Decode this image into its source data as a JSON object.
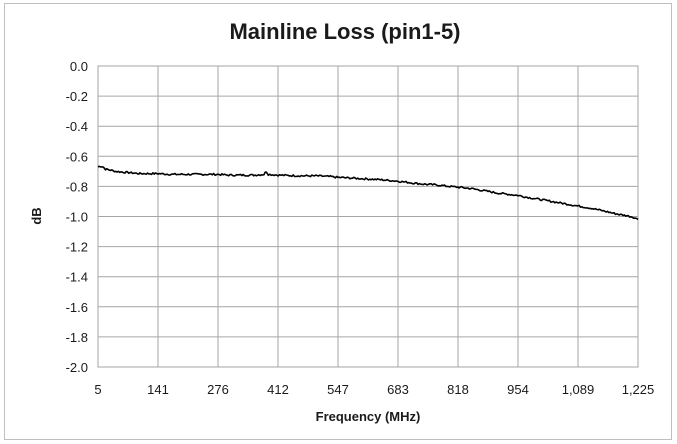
{
  "chart_data": {
    "type": "line",
    "title": "Mainline Loss (pin1-5)",
    "xlabel": "Frequency (MHz)",
    "ylabel": "dB",
    "xlim": [
      5,
      1225
    ],
    "ylim": [
      -2.0,
      0.0
    ],
    "x_ticks": [
      "5",
      "141",
      "276",
      "412",
      "547",
      "683",
      "818",
      "954",
      "1,089",
      "1,225"
    ],
    "y_ticks": [
      "0.0",
      "-0.2",
      "-0.4",
      "-0.6",
      "-0.8",
      "-1.0",
      "-1.2",
      "-1.4",
      "-1.6",
      "-1.8",
      "-2.0"
    ],
    "grid": true,
    "legend": "none",
    "line_color": "#000000",
    "grid_color": "#a6a6a6",
    "series": [
      {
        "x": [
          5,
          10,
          16,
          22,
          30,
          45,
          60,
          80,
          100,
          120,
          141,
          170,
          200,
          230,
          260,
          276,
          300,
          330,
          360,
          380,
          385,
          390,
          412,
          440,
          470,
          500,
          530,
          547,
          580,
          610,
          640,
          683,
          710,
          740,
          770,
          800,
          818,
          850,
          880,
          910,
          954,
          980,
          1010,
          1040,
          1070,
          1089,
          1120,
          1150,
          1180,
          1200,
          1215,
          1225
        ],
        "y": [
          -0.67,
          -0.665,
          -0.67,
          -0.685,
          -0.69,
          -0.7,
          -0.705,
          -0.71,
          -0.715,
          -0.715,
          -0.715,
          -0.72,
          -0.72,
          -0.72,
          -0.72,
          -0.72,
          -0.725,
          -0.725,
          -0.725,
          -0.72,
          -0.7,
          -0.72,
          -0.725,
          -0.728,
          -0.73,
          -0.73,
          -0.735,
          -0.74,
          -0.745,
          -0.75,
          -0.755,
          -0.765,
          -0.775,
          -0.785,
          -0.79,
          -0.8,
          -0.805,
          -0.815,
          -0.83,
          -0.845,
          -0.86,
          -0.875,
          -0.89,
          -0.905,
          -0.92,
          -0.93,
          -0.945,
          -0.965,
          -0.985,
          -0.995,
          -1.005,
          -1.02
        ]
      }
    ]
  }
}
